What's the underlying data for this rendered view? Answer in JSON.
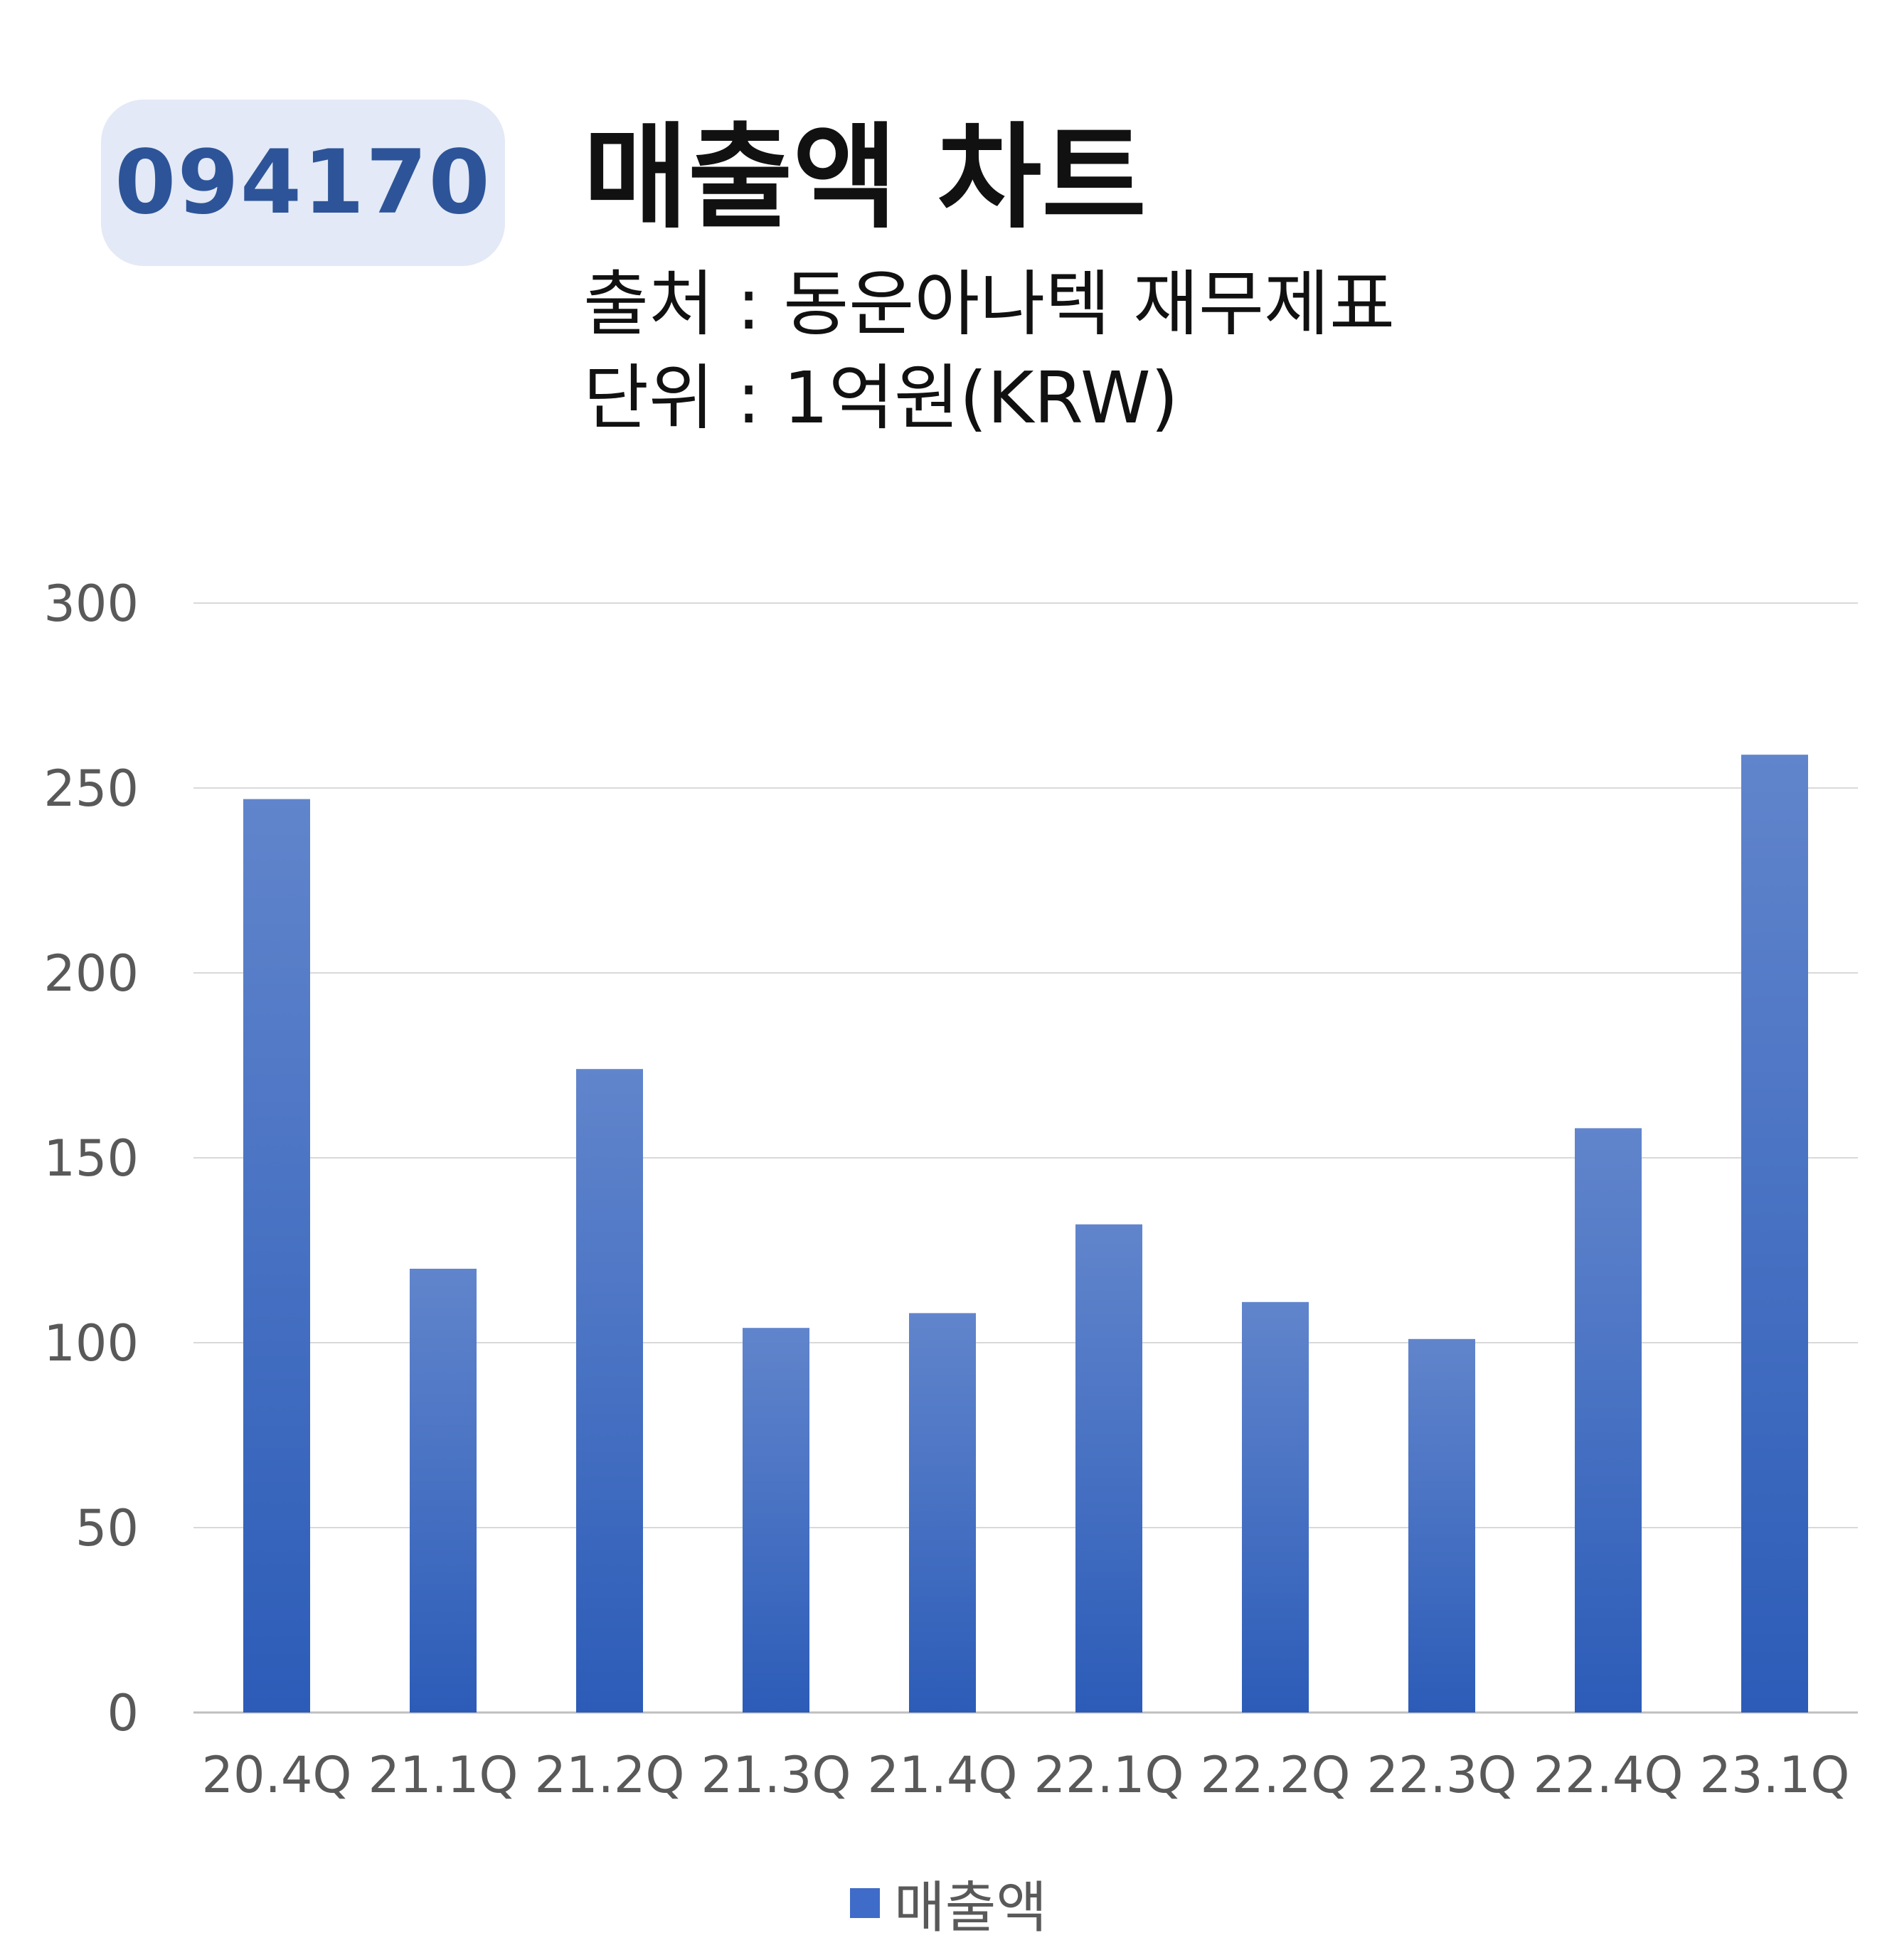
{
  "badge": {
    "code": "094170"
  },
  "header": {
    "title": "매출액 차트",
    "source": "출처 : 동운아나텍 재무제표",
    "unit": "단위 : 1억원(KRW)"
  },
  "colors": {
    "bar_top": "#6185cc",
    "bar_bottom": "#2c5cb8",
    "grid": "#d9d9d9",
    "badge_bg": "#e3e9f6",
    "badge_text": "#2d5498"
  },
  "chart_data": {
    "type": "bar",
    "categories": [
      "20.4Q",
      "21.1Q",
      "21.2Q",
      "21.3Q",
      "21.4Q",
      "22.1Q",
      "22.2Q",
      "22.3Q",
      "22.4Q",
      "23.1Q"
    ],
    "series": [
      {
        "name": "매출액",
        "values": [
          247,
          120,
          174,
          104,
          108,
          132,
          111,
          101,
          158,
          259
        ]
      }
    ],
    "ylim": [
      0,
      300
    ],
    "yticks": [
      0,
      50,
      100,
      150,
      200,
      250,
      300
    ],
    "grid": true,
    "legend": "bottom"
  }
}
